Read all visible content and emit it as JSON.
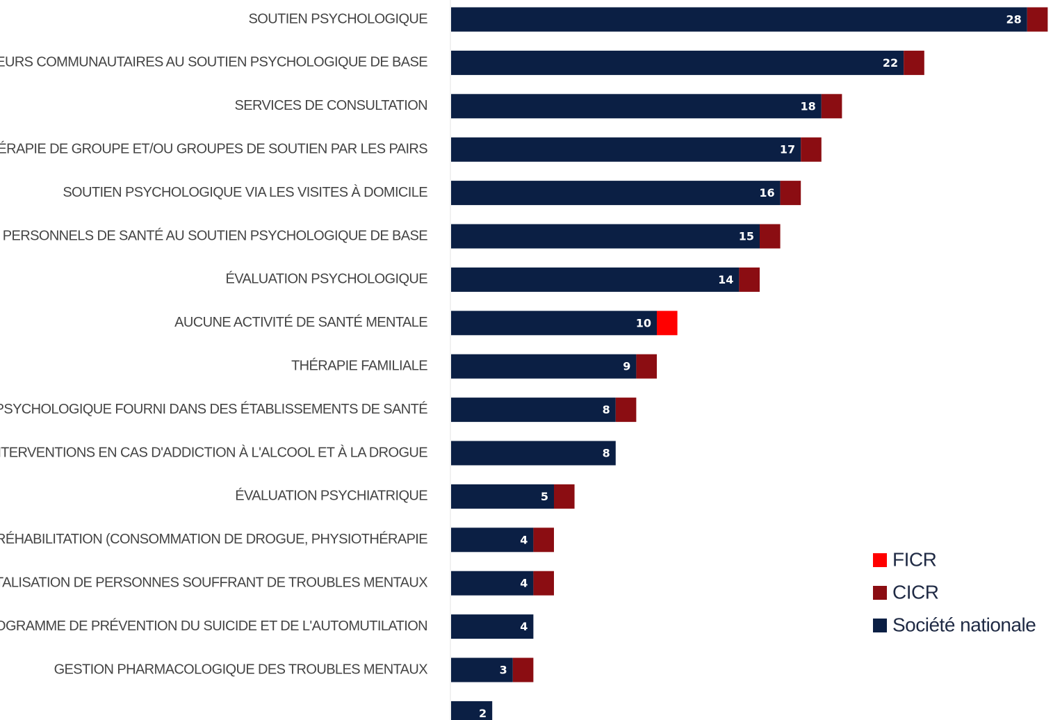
{
  "chart_data": {
    "type": "bar",
    "orientation": "horizontal",
    "stacked": true,
    "title": "",
    "xlabel": "",
    "ylabel": "",
    "xlim": [
      0,
      29
    ],
    "grid": false,
    "legend_position": "bottom-right",
    "categories": [
      "SOUTIEN PSYCHOLOGIQUE",
      "FORMATION D'ACTEURS COMMUNAUTAIRES AU SOUTIEN PSYCHOLOGIQUE DE BASE",
      "SERVICES DE CONSULTATION",
      "THÉRAPIE DE GROUPE ET/OU GROUPES DE SOUTIEN PAR LES PAIRS",
      "SOUTIEN PSYCHOLOGIQUE VIA LES VISITES À DOMICILE",
      "FORMATION DE PERSONNELS DE SANTÉ AU SOUTIEN PSYCHOLOGIQUE DE BASE",
      "ÉVALUATION PSYCHOLOGIQUE",
      "AUCUNE ACTIVITÉ DE SANTÉ MENTALE",
      "THÉRAPIE FAMILIALE",
      "SOUTIEN PSYCHOLOGIQUE FOURNI DANS DES ÉTABLISSEMENTS DE SANTÉ",
      "INTERVENTIONS EN CAS D'ADDICTION À L'ALCOOL ET À LA DROGUE",
      "ÉVALUATION PSYCHIATRIQUE",
      "RÉHABILITATION (CONSOMMATION DE DROGUE, PHYSIOTHÉRAPIE",
      "HOSPITALISATION DE PERSONNES SOUFFRANT DE TROUBLES MENTAUX",
      "PROGRAMME DE PRÉVENTION DU SUICIDE ET DE L'AUTOMUTILATION",
      "GESTION PHARMACOLOGIQUE DES TROUBLES MENTAUX",
      ""
    ],
    "series": [
      {
        "name": "Société nationale",
        "color": "#0b1f44",
        "values": [
          28,
          22,
          18,
          17,
          16,
          15,
          14,
          10,
          9,
          8,
          8,
          5,
          4,
          4,
          4,
          3,
          2
        ]
      },
      {
        "name": "CICR",
        "color": "#8b0d12",
        "values": [
          1,
          1,
          1,
          1,
          1,
          1,
          1,
          0,
          1,
          1,
          0,
          1,
          1,
          1,
          0,
          1,
          0
        ]
      },
      {
        "name": "FICR",
        "color": "#ff0000",
        "values": [
          0,
          0,
          0,
          0,
          0,
          0,
          0,
          1,
          0,
          0,
          0,
          0,
          0,
          0,
          0,
          0,
          0
        ]
      }
    ],
    "data_labels": [
      "28",
      "22",
      "18",
      "17",
      "16",
      "15",
      "14",
      "10",
      "9",
      "8",
      "8",
      "5",
      "4",
      "4",
      "4",
      "3",
      "2"
    ],
    "legend": [
      "FICR",
      "CICR",
      "Société nationale"
    ]
  }
}
